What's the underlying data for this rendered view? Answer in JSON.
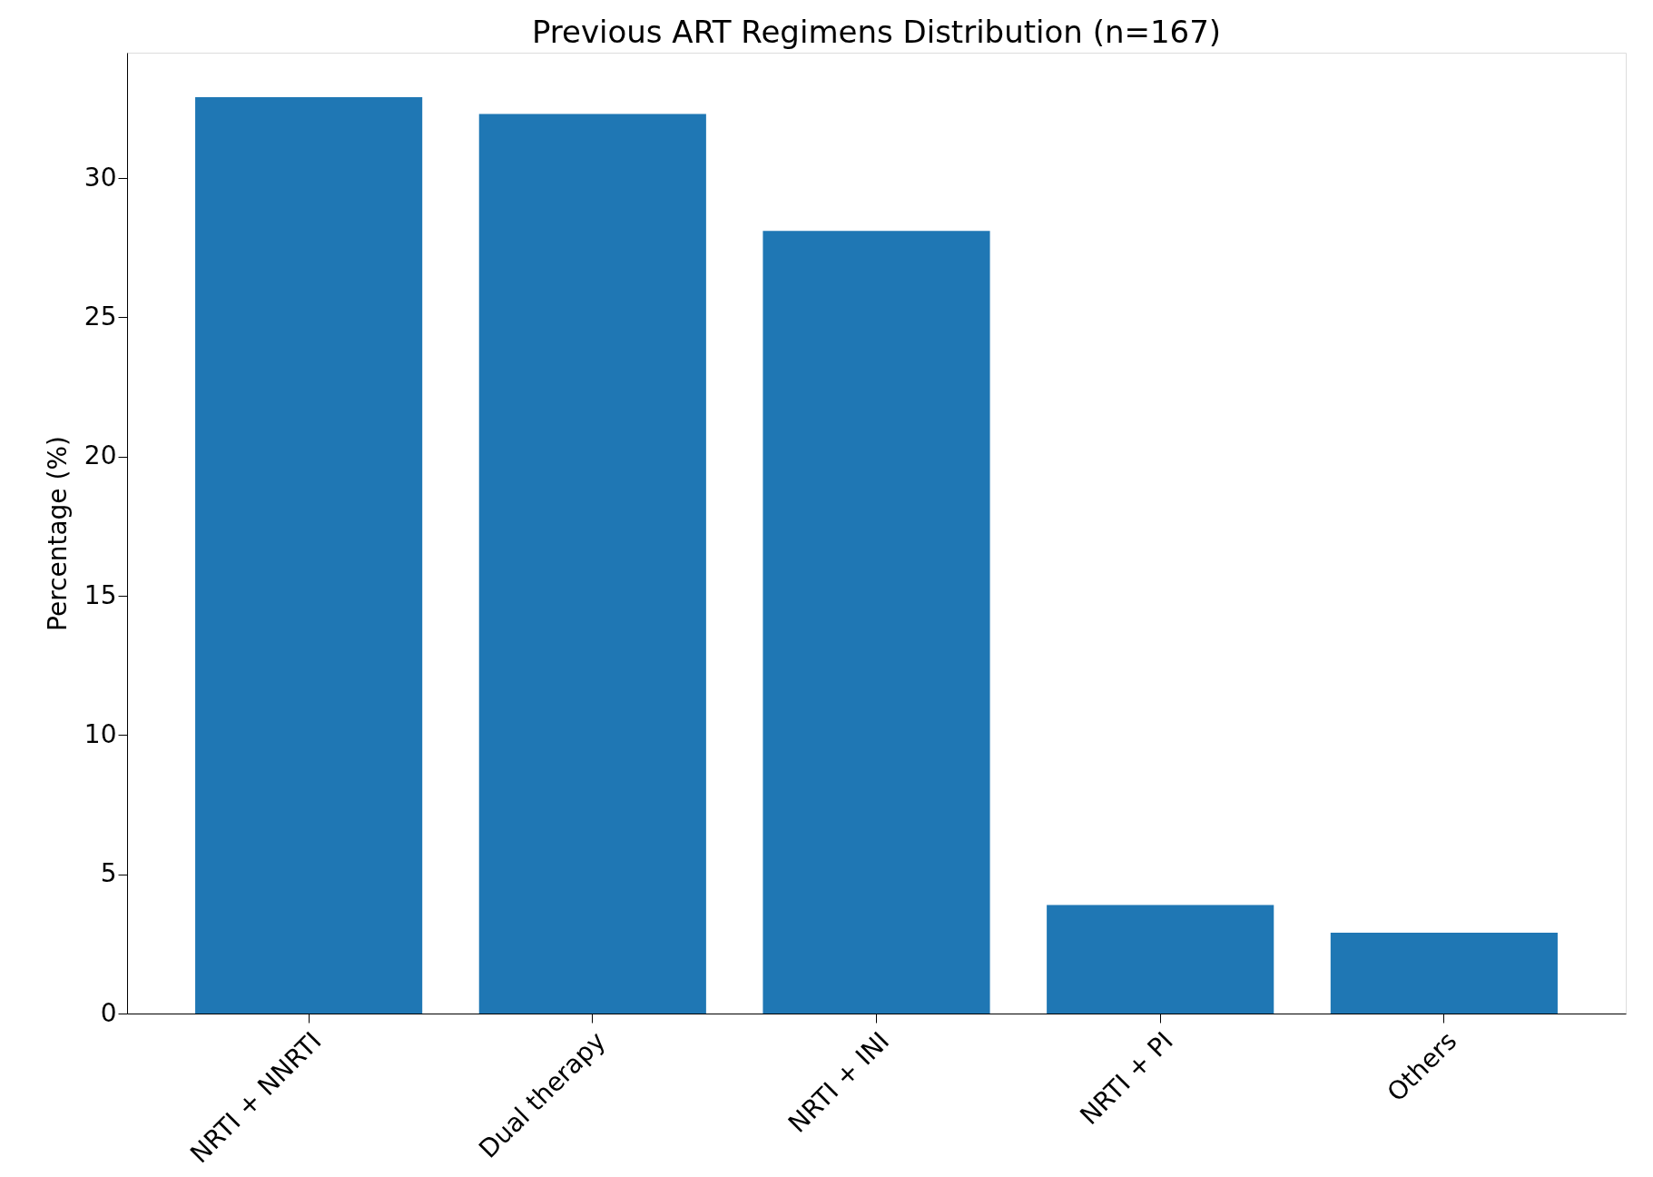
{
  "chart_data": {
    "type": "bar",
    "title": "Previous ART Regimens Distribution (n=167)",
    "ylabel": "Percentage (%)",
    "categories": [
      "NRTI + NNRTI",
      "Dual therapy",
      "NRTI + INI",
      "NRTI + PI",
      "Others"
    ],
    "values": [
      32.9,
      32.3,
      28.1,
      3.9,
      2.9
    ],
    "color": "#1f77b4",
    "ylim": [
      0,
      34.5
    ],
    "yticks": [
      0,
      5,
      10,
      15,
      20,
      25,
      30
    ],
    "grid": false
  }
}
